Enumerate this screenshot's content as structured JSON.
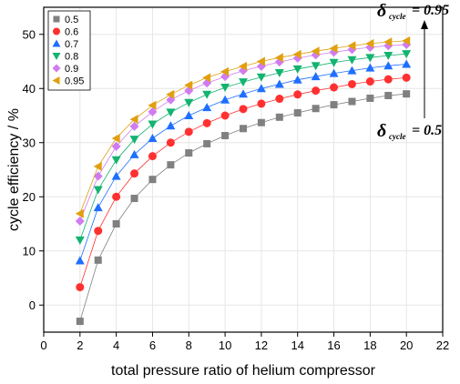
{
  "chart_data": {
    "type": "line",
    "title": "",
    "xlabel": "total pressure ratio of helium compressor",
    "ylabel": "cycle efficiency / %",
    "xlim": [
      0,
      22
    ],
    "ylim": [
      -5,
      55
    ],
    "xticks": [
      0,
      2,
      4,
      6,
      8,
      10,
      12,
      14,
      16,
      18,
      20,
      22
    ],
    "yticks": [
      0,
      10,
      20,
      30,
      40,
      50
    ],
    "grid": true,
    "legend_position": "top-left",
    "x": [
      2,
      3,
      4,
      5,
      6,
      7,
      8,
      9,
      10,
      11,
      12,
      13,
      14,
      15,
      16,
      17,
      18,
      19,
      20
    ],
    "series": [
      {
        "name": "0.5",
        "color": "#808080",
        "marker": "square",
        "values": [
          -3.0,
          8.3,
          15.0,
          19.7,
          23.2,
          25.9,
          28.1,
          29.8,
          31.3,
          32.6,
          33.7,
          34.7,
          35.5,
          36.3,
          37.0,
          37.6,
          38.2,
          38.7,
          39.0
        ]
      },
      {
        "name": "0.6",
        "color": "#ff3030",
        "marker": "circle",
        "values": [
          3.3,
          13.7,
          20.0,
          24.3,
          27.5,
          30.0,
          32.0,
          33.6,
          35.0,
          36.2,
          37.2,
          38.1,
          38.9,
          39.6,
          40.2,
          40.8,
          41.3,
          41.7,
          42.0
        ]
      },
      {
        "name": "0.7",
        "color": "#1e6fff",
        "marker": "triangle-up",
        "values": [
          8.2,
          18.0,
          23.8,
          27.8,
          30.8,
          33.1,
          35.0,
          36.5,
          37.9,
          39.0,
          40.0,
          40.8,
          41.6,
          42.2,
          42.8,
          43.3,
          43.8,
          44.2,
          44.5
        ]
      },
      {
        "name": "0.8",
        "color": "#13b370",
        "marker": "triangle-down",
        "values": [
          12.0,
          21.3,
          26.8,
          30.6,
          33.4,
          35.6,
          37.4,
          38.9,
          40.2,
          41.2,
          42.1,
          42.9,
          43.6,
          44.2,
          44.8,
          45.3,
          45.7,
          46.1,
          46.4
        ]
      },
      {
        "name": "0.9",
        "color": "#d07cf0",
        "marker": "diamond",
        "values": [
          15.5,
          23.8,
          29.3,
          33.0,
          35.7,
          37.9,
          39.6,
          41.0,
          42.2,
          43.3,
          44.1,
          44.9,
          45.6,
          46.2,
          46.7,
          47.2,
          47.6,
          47.9,
          48.1
        ]
      },
      {
        "name": "0.95",
        "color": "#e0a010",
        "marker": "triangle-left",
        "values": [
          16.9,
          25.6,
          30.8,
          34.3,
          36.9,
          38.9,
          40.6,
          42.0,
          43.1,
          44.1,
          45.0,
          45.7,
          46.3,
          46.9,
          47.4,
          47.9,
          48.3,
          48.6,
          48.8
        ]
      }
    ],
    "annotations": [
      {
        "symbol": "δ",
        "subscript": "cycle",
        "value": "= 0.95",
        "position": "top-right"
      },
      {
        "symbol": "δ",
        "subscript": "cycle",
        "value": "= 0.5",
        "position": "right"
      }
    ]
  }
}
